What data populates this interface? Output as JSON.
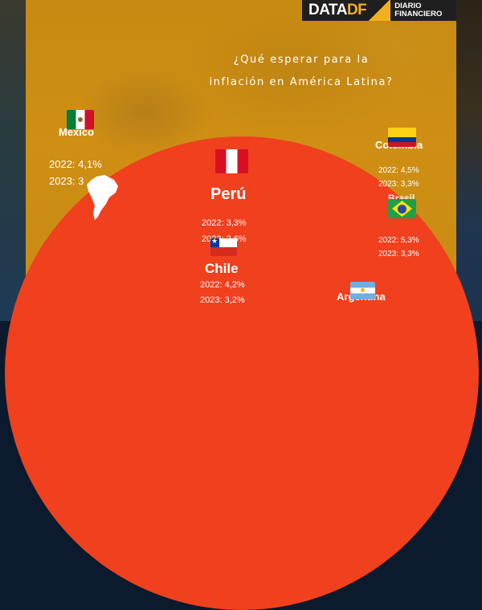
{
  "logo": {
    "brand_main": "DATA",
    "brand_accent": "DF",
    "publisher_line1": "DIARIO",
    "publisher_line2": "FINANCIERO"
  },
  "title": {
    "line1": "¿Qué esperar para la",
    "line2": "inflación en América Latina?"
  },
  "countries": {
    "mexico": {
      "name": "Mexico",
      "v2022": "2022: 4,1%",
      "v2023": "2023: 3"
    },
    "peru": {
      "name": "Perú",
      "v2022": "2022: 3,3%",
      "v2023": "2023: 2,6%"
    },
    "colombia": {
      "name": "Colombia",
      "v2022": "2022: 4,5%",
      "v2023": "2023: 3,3%"
    },
    "brasil": {
      "name": "Brasil",
      "v2022": "2022: 5,3%",
      "v2023": "2023: 3,3%"
    },
    "chile": {
      "name": "Chile",
      "v2022": "2022: 4,2%",
      "v2023": "2023: 3,2%"
    },
    "argentina": {
      "name": "Argentina"
    }
  },
  "colors": {
    "panel_orange": "#c98b12",
    "circle_red": "#f0401e",
    "brand_gold": "#f2b01e",
    "logo_bg": "#1f1f1f"
  },
  "icons": [
    "mexico-flag-icon",
    "peru-flag-icon",
    "colombia-flag-icon",
    "brazil-flag-icon",
    "chile-flag-icon",
    "argentina-flag-icon",
    "south-america-map-icon"
  ]
}
